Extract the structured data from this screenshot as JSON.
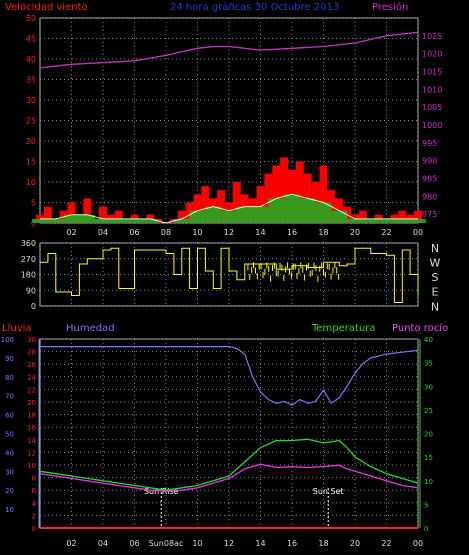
{
  "header": {
    "left_title": "Velocidad viento",
    "center_title": "24 hora gráficas   30 Octubre 2013",
    "right_title": "Presión"
  },
  "colors": {
    "background": "#000000",
    "wind_axis": "#ff2020",
    "pressure_axis": "#cc33cc",
    "title_blue": "#2a3ad0",
    "direction_line": "#ffff00",
    "wind_gust": "#ff0000",
    "wind_avg": "#ccffcc",
    "wind_bars": "#22aa22",
    "rain": "#ff2020",
    "humidity": "#7777ff",
    "temperature": "#22dd22",
    "dewpoint": "#ee33ee",
    "grid": "#888888"
  },
  "chart_data": [
    {
      "type": "line",
      "panel": "wind_pressure",
      "x_ticks": [
        "02",
        "04",
        "06",
        "08",
        "10",
        "12",
        "14",
        "16",
        "18",
        "20",
        "22",
        "00"
      ],
      "y_left_label": "Velocidad viento",
      "y_left_ticks": [
        0,
        5,
        10,
        15,
        20,
        25,
        30,
        35,
        40,
        45,
        50
      ],
      "y_left_range": [
        0,
        50
      ],
      "y_right_label": "Presión",
      "y_right_ticks": [
        975,
        980,
        985,
        990,
        995,
        1000,
        1005,
        1010,
        1015,
        1020,
        1025
      ],
      "y_right_range": [
        972.5,
        1030
      ],
      "series": [
        {
          "name": "Presión",
          "axis": "right",
          "x": [
            0,
            2,
            4,
            6,
            8,
            10,
            11,
            12,
            14,
            16,
            18,
            20,
            21,
            22,
            23,
            24
          ],
          "y": [
            1016,
            1017,
            1017.5,
            1018,
            1019.5,
            1021.5,
            1022,
            1022,
            1021,
            1021.5,
            1022,
            1023,
            1024,
            1025,
            1025.5,
            1026
          ]
        },
        {
          "name": "Velocidad viento (racha)",
          "axis": "left",
          "x": [
            0,
            0.5,
            1,
            1.5,
            2,
            2.5,
            3,
            3.5,
            4,
            4.5,
            5,
            5.5,
            6,
            6.5,
            7,
            7.5,
            8,
            8.5,
            9,
            9.5,
            10,
            10.5,
            11,
            11.5,
            12,
            12.5,
            13,
            13.5,
            14,
            14.5,
            15,
            15.5,
            16,
            16.5,
            17,
            17.5,
            18,
            18.5,
            19,
            19.5,
            20,
            20.5,
            21,
            21.5,
            22,
            22.5,
            23,
            23.5,
            24
          ],
          "y": [
            2,
            4,
            1,
            3,
            5,
            2,
            6,
            1,
            4,
            2,
            3,
            1,
            2,
            1,
            2,
            1,
            0,
            1,
            3,
            5,
            7,
            9,
            6,
            8,
            5,
            10,
            7,
            6,
            9,
            12,
            14,
            16,
            13,
            15,
            12,
            10,
            14,
            8,
            6,
            4,
            2,
            3,
            1,
            2,
            1,
            2,
            3,
            2,
            3
          ]
        },
        {
          "name": "Velocidad viento (media)",
          "axis": "left",
          "x": [
            0,
            1,
            2,
            3,
            4,
            5,
            6,
            7,
            8,
            9,
            10,
            11,
            12,
            13,
            14,
            15,
            16,
            17,
            18,
            19,
            20,
            21,
            22,
            23,
            24
          ],
          "y": [
            1,
            1,
            2,
            2,
            1,
            1,
            1,
            1,
            0,
            1,
            3,
            4,
            3,
            4,
            4,
            6,
            7,
            6,
            5,
            3,
            1,
            1,
            1,
            1,
            1
          ]
        }
      ]
    },
    {
      "type": "line",
      "panel": "wind_direction",
      "x_ticks": [
        "02",
        "04",
        "06",
        "08",
        "10",
        "12",
        "14",
        "16",
        "18",
        "20",
        "22",
        "00"
      ],
      "y_ticks": [
        0,
        90,
        180,
        270,
        360
      ],
      "y_range": [
        0,
        360
      ],
      "direction_labels": [
        "N",
        "W",
        "S",
        "E",
        "N"
      ],
      "series": [
        {
          "name": "Dirección",
          "x": [
            0,
            0.5,
            1,
            2,
            2.5,
            3,
            4,
            4.5,
            5,
            6,
            7,
            8,
            8.5,
            9,
            9.5,
            10,
            10.5,
            11,
            11.5,
            12,
            12.5,
            13,
            14,
            15,
            16,
            17,
            18,
            19,
            19.5,
            20,
            21,
            22,
            22.5,
            23,
            23.5,
            24
          ],
          "y": [
            250,
            300,
            80,
            60,
            240,
            270,
            320,
            330,
            100,
            320,
            320,
            300,
            180,
            330,
            100,
            330,
            200,
            100,
            330,
            200,
            150,
            240,
            240,
            210,
            230,
            220,
            250,
            230,
            240,
            330,
            300,
            290,
            20,
            320,
            180,
            60
          ]
        }
      ]
    },
    {
      "type": "line",
      "panel": "rain_humidity_temp",
      "x_ticks": [
        "02",
        "04",
        "06",
        "Sun08ac",
        "10",
        "12",
        "14",
        "16",
        "18",
        "20",
        "22",
        "00"
      ],
      "annotations": [
        {
          "text": "Sun Rise",
          "x": 7.7
        },
        {
          "text": "Sun Set",
          "x": 18.3
        }
      ],
      "legend": [
        "Lluvia",
        "Humedad",
        "Temperatura",
        "Punto rocío"
      ],
      "y_rain_ticks": [
        0,
        2,
        4,
        6,
        8,
        10,
        12,
        14,
        16,
        18,
        20,
        22,
        24,
        26,
        28,
        30
      ],
      "y_rain_range": [
        0,
        30
      ],
      "y_humidity_ticks": [
        10,
        20,
        30,
        40,
        50,
        60,
        70,
        80,
        90,
        100
      ],
      "y_humidity_range": [
        0,
        100
      ],
      "y_temp_ticks": [
        0,
        5,
        10,
        15,
        20,
        25,
        30,
        35,
        40
      ],
      "y_temp_range": [
        0,
        40
      ],
      "series": [
        {
          "name": "Lluvia",
          "axis": "rain",
          "x": [
            0,
            24
          ],
          "y": [
            0,
            0
          ]
        },
        {
          "name": "Humedad",
          "axis": "humidity",
          "x": [
            0,
            2,
            4,
            6,
            8,
            10,
            12,
            12.5,
            13,
            13.5,
            14,
            14.5,
            15,
            15.5,
            16,
            16.5,
            17,
            17.5,
            18,
            18.5,
            19,
            19.5,
            20,
            20.5,
            21,
            22,
            23,
            24
          ],
          "y": [
            96,
            96,
            96,
            96,
            96,
            96,
            96,
            95,
            92,
            80,
            72,
            68,
            66,
            67,
            65,
            68,
            66,
            67,
            73,
            66,
            69,
            75,
            82,
            87,
            90,
            92,
            93,
            94
          ]
        },
        {
          "name": "Temperatura",
          "axis": "temp",
          "x": [
            0,
            1,
            2,
            3,
            4,
            5,
            6,
            7,
            8,
            9,
            10,
            11,
            12,
            13,
            14,
            15,
            16,
            17,
            18,
            19,
            19.5,
            20,
            21,
            22,
            23,
            24
          ],
          "y": [
            12,
            11.5,
            11,
            10.5,
            10,
            9.5,
            9,
            8.5,
            8,
            8.5,
            9,
            10,
            11,
            14,
            17,
            18.5,
            18.5,
            18.8,
            18,
            18.5,
            17,
            15,
            13,
            11.5,
            10.5,
            9.5
          ]
        },
        {
          "name": "Punto rocío",
          "axis": "temp",
          "x": [
            0,
            1,
            2,
            3,
            4,
            5,
            6,
            7,
            8,
            9,
            10,
            11,
            12,
            13,
            14,
            15,
            16,
            17,
            18,
            19,
            19.5,
            20,
            21,
            22,
            23,
            24
          ],
          "y": [
            11.5,
            11,
            10.5,
            10,
            9.5,
            9,
            8.5,
            8,
            7.8,
            8,
            8.5,
            9.5,
            10.5,
            12.5,
            13.5,
            12.8,
            13,
            12.8,
            13,
            13.3,
            12.5,
            12,
            11,
            10,
            9,
            8.5
          ]
        }
      ]
    }
  ]
}
